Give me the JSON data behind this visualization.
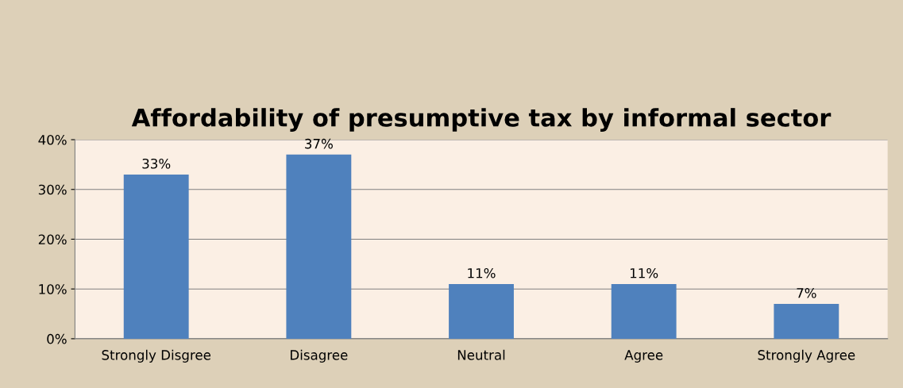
{
  "chart_data": {
    "type": "bar",
    "title": "Affordability of presumptive tax by informal sector",
    "categories": [
      "Strongly Disgree",
      "Disagree",
      "Neutral",
      "Agree",
      "Strongly Agree"
    ],
    "values": [
      33,
      37,
      11,
      11,
      7
    ],
    "value_labels": [
      "33%",
      "37%",
      "11%",
      "11%",
      "7%"
    ],
    "color": "#4f81bd",
    "ylim": [
      0,
      40
    ],
    "yticks": [
      {
        "value": 0,
        "label": "0%"
      },
      {
        "value": 10,
        "label": "10%"
      },
      {
        "value": 20,
        "label": "20%"
      },
      {
        "value": 30,
        "label": "30%"
      },
      {
        "value": 40,
        "label": "40%"
      }
    ],
    "grid": "y",
    "legend": false
  }
}
